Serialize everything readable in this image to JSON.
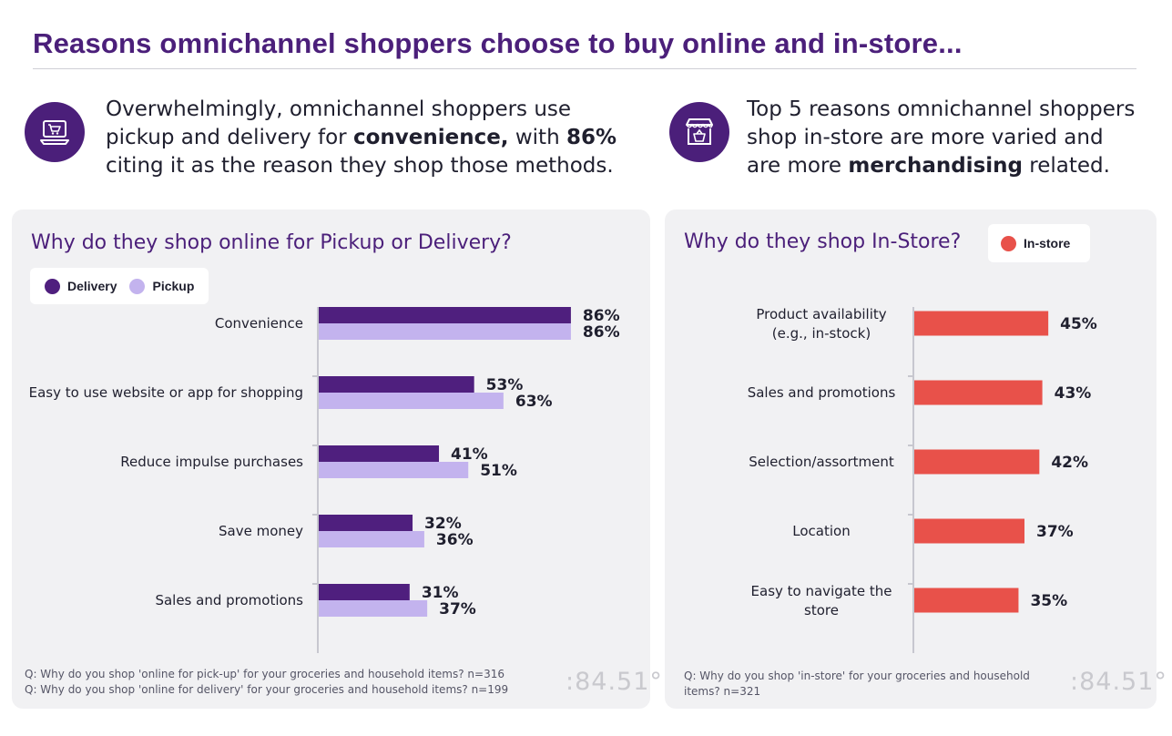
{
  "page": {
    "title": "Reasons omnichannel shoppers choose to buy online and in-store...",
    "accent_color": "#4b1f7a"
  },
  "intro_left": {
    "icon": "laptop-cart-icon",
    "line1": "Overwhelmingly, omnichannel shoppers use",
    "line2_pre": "pickup and delivery for ",
    "line2_bold": "convenience,",
    "line2_mid": " with ",
    "line2_num": "86%",
    "line3": "citing it as the reason they shop those methods."
  },
  "intro_right": {
    "icon": "storefront-basket-icon",
    "line1": "Top 5 reasons omnichannel shoppers",
    "line2": "shop in-store are more varied and",
    "line3_pre": "are more ",
    "line3_bold": "merchandising",
    "line3_post": " related."
  },
  "left_panel": {
    "title": "Why do they shop online for Pickup or Delivery?",
    "footnote1": "Q:  Why do you shop 'online for pick-up' for your groceries and household items? n=316",
    "footnote2": "Q:  Why do you shop 'online for delivery' for your groceries and household items? n=199",
    "logo": ":84.51°"
  },
  "right_panel": {
    "title": "Why do they shop In-Store?",
    "footnote1": "Q: Why do you shop 'in-store' for your groceries and household",
    "footnote2": "items? n=321",
    "logo": ":84.51°"
  },
  "chart_data": [
    {
      "type": "bar",
      "orientation": "horizontal",
      "categories": [
        "Convenience",
        "Easy to use website or app for shopping",
        "Reduce impulse purchases",
        "Save money",
        "Sales and promotions"
      ],
      "series": [
        {
          "name": "Delivery",
          "color": "#4f1f7e",
          "values": [
            86,
            53,
            41,
            32,
            31
          ]
        },
        {
          "name": "Pickup",
          "color": "#c3b3ee",
          "values": [
            86,
            63,
            51,
            36,
            37
          ]
        }
      ],
      "value_suffix": "%",
      "xlim": [
        0,
        100
      ],
      "grid": false,
      "legend_position": "top-left"
    },
    {
      "type": "bar",
      "orientation": "horizontal",
      "categories": [
        "Product availability (e.g., in-stock)",
        "Sales and promotions",
        "Selection/assortment",
        "Location",
        "Easy to navigate the store"
      ],
      "series": [
        {
          "name": "In-store",
          "color": "#e8514a",
          "values": [
            45,
            43,
            42,
            37,
            35
          ]
        }
      ],
      "value_suffix": "%",
      "xlim": [
        0,
        100
      ],
      "grid": false,
      "legend_position": "top-right"
    }
  ]
}
